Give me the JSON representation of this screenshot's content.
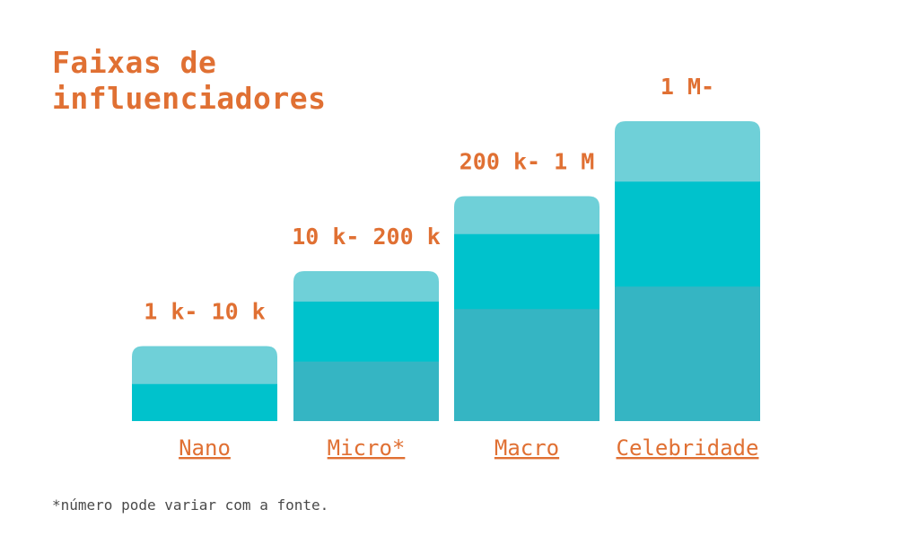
{
  "title_lines": [
    "Faixas de",
    "influenciadores"
  ],
  "colors": {
    "accent": "#E07033",
    "band_top": "#6FD0D8",
    "band_mid": "#00C2CC",
    "band_base": "#35B5C3",
    "footnote": "#4a4a4a"
  },
  "chart_data": {
    "type": "bar",
    "categories": [
      "Nano",
      "Micro*",
      "Macro",
      "Celebridade"
    ],
    "data_labels": [
      "1 k- 10 k",
      "10 k- 200 k",
      "200 k- 1 M",
      "1 M-"
    ],
    "values": [
      1,
      2,
      3,
      4
    ],
    "bands": [
      {
        "top": 0.5,
        "mid": 0.5,
        "base": 0
      },
      {
        "top": 0.4,
        "mid": 0.8,
        "base": 0.8
      },
      {
        "top": 0.5,
        "mid": 1.0,
        "base": 1.5
      },
      {
        "top": 0.8,
        "mid": 1.4,
        "base": 1.8
      }
    ],
    "grid": false,
    "legend": "none"
  },
  "footnote": "*número pode variar com a fonte."
}
